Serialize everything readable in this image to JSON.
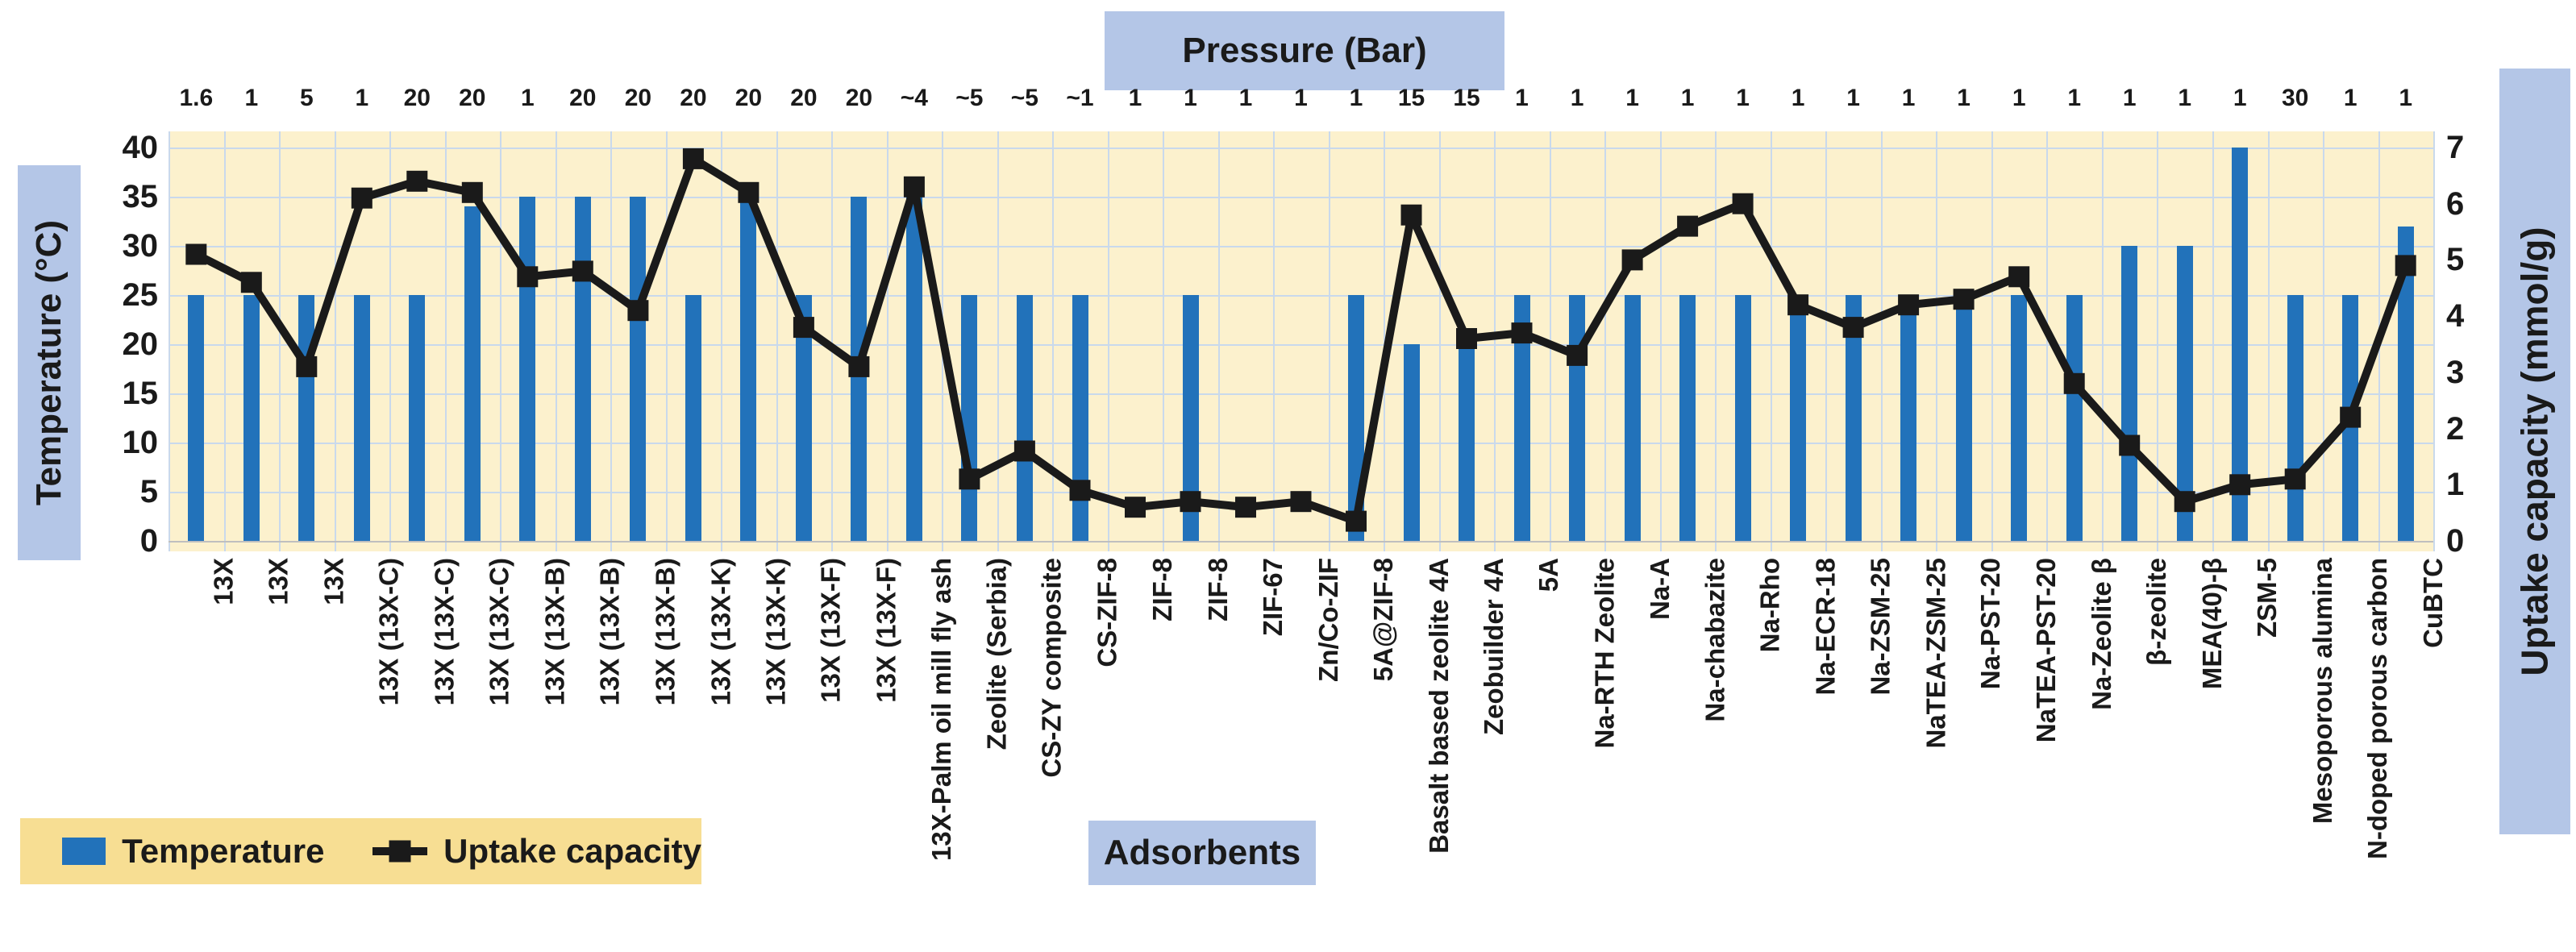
{
  "chart_data": {
    "type": "combo-bar-line",
    "title": "Pressure (Bar)",
    "xlabel": "Adsorbents",
    "ylabel_left": "Temperature (°C)",
    "ylabel_right": "Uptake capacity (mmol/g)",
    "ylim_left": [
      0,
      40
    ],
    "yticks_left": [
      0,
      5,
      10,
      15,
      20,
      25,
      30,
      35,
      40
    ],
    "ylim_right": [
      0,
      7
    ],
    "yticks_right": [
      0,
      1,
      2,
      3,
      4,
      5,
      6,
      7
    ],
    "grid": true,
    "legend_position": "bottom-left",
    "categories": [
      "13X",
      "13X",
      "13X",
      "13X (13X-C)",
      "13X (13X-C)",
      "13X (13X-C)",
      "13X (13X-B)",
      "13X (13X-B)",
      "13X (13X-B)",
      "13X (13X-K)",
      "13X (13X-K)",
      "13X (13X-F)",
      "13X (13X-F)",
      "13X-Palm oil mill fly ash",
      "Zeolite (Serbia)",
      "CS-ZY composite",
      "CS-ZIF-8",
      "ZIF-8",
      "ZIF-8",
      "ZIF-67",
      "Zn/Co-ZIF",
      "5A@ZIF-8",
      "Basalt based zeolite 4A",
      "Zeobuilder 4A",
      "5A",
      "Na-RTH Zeolite",
      "Na-A",
      "Na-chabazite",
      "Na-Rho",
      "Na-ECR-18",
      "Na-ZSM-25",
      "NaTEA-ZSM-25",
      "Na-PST-20",
      "NaTEA-PST-20",
      "Na-Zeolite β",
      "β-zeolite",
      "MEA(40)-β",
      "ZSM-5",
      "Mesoporous alumina",
      "N-doped porous carbon",
      "CuBTC"
    ],
    "pressure_bar_labels": [
      "1.6",
      "1",
      "5",
      "1",
      "20",
      "20",
      "1",
      "20",
      "20",
      "20",
      "20",
      "20",
      "20",
      "~4",
      "~5",
      "~5",
      "~1",
      "1",
      "1",
      "1",
      "1",
      "1",
      "15",
      "15",
      "1",
      "1",
      "1",
      "1",
      "1",
      "1",
      "1",
      "1",
      "1",
      "1",
      "1",
      "1",
      "1",
      "1",
      "30",
      "1",
      "1"
    ],
    "series": [
      {
        "name": "Temperature",
        "type": "bar",
        "axis": "left",
        "unit": "°C",
        "values": [
          25,
          25,
          25,
          25,
          25,
          34,
          35,
          35,
          35,
          25,
          35,
          25,
          35,
          35,
          25,
          25,
          25,
          0,
          25,
          0,
          0,
          25,
          20,
          20,
          25,
          25,
          25,
          25,
          25,
          25,
          25,
          25,
          25,
          25,
          25,
          30,
          30,
          40,
          25,
          25,
          32
        ]
      },
      {
        "name": "Uptake capacity",
        "type": "line",
        "axis": "right",
        "unit": "mmol/g",
        "values": [
          5.1,
          4.6,
          3.1,
          6.1,
          6.4,
          6.2,
          4.7,
          4.8,
          4.1,
          6.8,
          6.2,
          3.8,
          3.1,
          6.3,
          1.1,
          1.6,
          0.9,
          0.6,
          0.7,
          0.6,
          0.7,
          0.35,
          5.8,
          3.6,
          3.7,
          3.3,
          5.0,
          5.6,
          6.0,
          4.2,
          3.8,
          4.2,
          4.3,
          4.7,
          2.8,
          1.7,
          0.7,
          1.0,
          1.1,
          2.2,
          4.9
        ]
      }
    ],
    "colors": {
      "bar": "#2272BA",
      "line": "#1A1A1A",
      "plot_bg": "#FCF1CD",
      "legend_bg": "#F7DE93",
      "label_bg": "#B4C6E7",
      "gridline": "#C9D9EC",
      "axis_line": "#BFBFBF",
      "text": "#1A1A1A"
    }
  }
}
